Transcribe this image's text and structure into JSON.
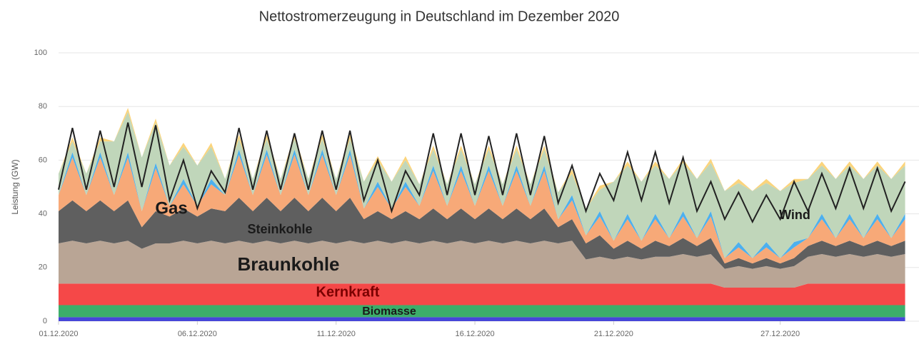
{
  "chart_data": {
    "type": "area",
    "stacked": true,
    "title": "Nettostromerzeugung in Deutschland im Dezember 2020",
    "y_label": "Leistung (GW)",
    "xlim": [
      0,
      31
    ],
    "xticks": [
      {
        "value": 0,
        "label": "01.12.2020"
      },
      {
        "value": 5,
        "label": "06.12.2020"
      },
      {
        "value": 10,
        "label": "11.12.2020"
      },
      {
        "value": 15,
        "label": "16.12.2020"
      },
      {
        "value": 20,
        "label": "21.12.2020"
      },
      {
        "value": 26,
        "label": "27.12.2020"
      }
    ],
    "ylim": [
      0,
      100
    ],
    "yticks": [
      0,
      20,
      40,
      60,
      80,
      100
    ],
    "grid": true,
    "x": [
      0,
      0.5,
      1,
      1.5,
      2,
      2.5,
      3,
      3.5,
      4,
      4.5,
      5,
      5.5,
      6,
      6.5,
      7,
      7.5,
      8,
      8.5,
      9,
      9.5,
      10,
      10.5,
      11,
      11.5,
      12,
      12.5,
      13,
      13.5,
      14,
      14.5,
      15,
      15.5,
      16,
      16.5,
      17,
      17.5,
      18,
      18.5,
      19,
      19.5,
      20,
      20.5,
      21,
      21.5,
      22,
      22.5,
      23,
      23.5,
      24,
      24.5,
      25,
      25.5,
      26,
      26.5,
      27,
      27.5,
      28,
      28.5,
      29,
      29.5,
      30,
      30.5
    ],
    "series": [
      {
        "color": "#4646d8",
        "values": [
          1.5,
          1.5,
          1.5,
          1.5,
          1.5,
          1.5,
          1.5,
          1.5,
          1.5,
          1.5,
          1.5,
          1.5,
          1.5,
          1.5,
          1.5,
          1.5,
          1.5,
          1.5,
          1.5,
          1.5,
          1.5,
          1.5,
          1.5,
          1.5,
          1.5,
          1.5,
          1.5,
          1.5,
          1.5,
          1.5,
          1.5,
          1.5,
          1.5,
          1.5,
          1.5,
          1.5,
          1.5,
          1.5,
          1.5,
          1.5,
          1.5,
          1.5,
          1.5,
          1.5,
          1.5,
          1.5,
          1.5,
          1.5,
          1.5,
          1.5,
          1.5,
          1.5,
          1.5,
          1.5,
          1.5,
          1.5,
          1.5,
          1.5,
          1.5,
          1.5,
          1.5,
          1.5
        ]
      },
      {
        "name": "Biomasse",
        "color": "#3cae6a",
        "values": [
          4.5,
          4.5,
          4.5,
          4.5,
          4.5,
          4.5,
          4.5,
          4.5,
          4.5,
          4.5,
          4.5,
          4.5,
          4.5,
          4.5,
          4.5,
          4.5,
          4.5,
          4.5,
          4.5,
          4.5,
          4.5,
          4.5,
          4.5,
          4.5,
          4.5,
          4.5,
          4.5,
          4.5,
          4.5,
          4.5,
          4.5,
          4.5,
          4.5,
          4.5,
          4.5,
          4.5,
          4.5,
          4.5,
          4.5,
          4.5,
          4.5,
          4.5,
          4.5,
          4.5,
          4.5,
          4.5,
          4.5,
          4.5,
          4.5,
          4.5,
          4.5,
          4.5,
          4.5,
          4.5,
          4.5,
          4.5,
          4.5,
          4.5,
          4.5,
          4.5,
          4.5,
          4.5
        ]
      },
      {
        "name": "Kernkraft",
        "color": "#f54848",
        "values": [
          8,
          8,
          8,
          8,
          8,
          8,
          8,
          8,
          8,
          8,
          8,
          8,
          8,
          8,
          8,
          8,
          8,
          8,
          8,
          8,
          8,
          8,
          8,
          8,
          8,
          8,
          8,
          8,
          8,
          8,
          8,
          8,
          8,
          8,
          8,
          8,
          8,
          8,
          8,
          8,
          8,
          8,
          8,
          8,
          8,
          8,
          8,
          8,
          6.5,
          6.5,
          6.5,
          6.5,
          6.5,
          6.5,
          8,
          8,
          8,
          8,
          8,
          8,
          8,
          8
        ]
      },
      {
        "name": "Braunkohle",
        "color": "#b9a595",
        "values": [
          15,
          16,
          15,
          16,
          15,
          16,
          13,
          15,
          15,
          16,
          15,
          16,
          15,
          16,
          15,
          16,
          15,
          16,
          15,
          16,
          15,
          16,
          15,
          16,
          15,
          16,
          15,
          16,
          15,
          16,
          15,
          16,
          15,
          16,
          15,
          16,
          15,
          16,
          9,
          10,
          9,
          10,
          9,
          10,
          10,
          11,
          10,
          11,
          7,
          8,
          7,
          8,
          7,
          8,
          10,
          11,
          10,
          11,
          10,
          11,
          10,
          11
        ]
      },
      {
        "name": "Steinkohle",
        "color": "#5f5f5f",
        "values": [
          12,
          15,
          12,
          15,
          12,
          15,
          8,
          12,
          10,
          12,
          10,
          12,
          12,
          16,
          12,
          16,
          12,
          16,
          12,
          16,
          12,
          16,
          9,
          11,
          9,
          11,
          9,
          12,
          9,
          12,
          9,
          12,
          9,
          12,
          9,
          12,
          6,
          8,
          6,
          8,
          4,
          6,
          4,
          6,
          4,
          6,
          4,
          6,
          2,
          3,
          2,
          3,
          2,
          3,
          4,
          5,
          4,
          5,
          4,
          5,
          4,
          5
        ]
      },
      {
        "name": "Gas",
        "color": "#f7a978",
        "values": [
          6,
          16,
          6,
          16,
          6,
          16,
          6,
          16,
          4,
          9,
          4,
          9,
          6,
          16,
          6,
          16,
          6,
          16,
          6,
          16,
          6,
          16,
          4,
          9,
          4,
          9,
          5,
          14,
          5,
          14,
          5,
          14,
          5,
          14,
          5,
          14,
          3,
          7,
          3,
          7,
          3,
          8,
          3,
          8,
          3,
          8,
          3,
          8,
          2,
          4,
          2,
          4,
          2,
          4,
          3,
          8,
          3,
          8,
          3,
          8,
          3,
          8
        ]
      },
      {
        "color": "#4cb0ee",
        "values": [
          0,
          2,
          0,
          2,
          0,
          2,
          0,
          2,
          0,
          2,
          0,
          2,
          0,
          2,
          0,
          2,
          0,
          2,
          0,
          2,
          0,
          2,
          0,
          2,
          0,
          2,
          0,
          2,
          0,
          2,
          0,
          2,
          0,
          2,
          0,
          2,
          0,
          2,
          0,
          2,
          0,
          2,
          0,
          2,
          0,
          2,
          0,
          2,
          0,
          2,
          0,
          2,
          0,
          2,
          0,
          2,
          0,
          2,
          0,
          2,
          0,
          2
        ]
      },
      {
        "name": "Wind",
        "color": "#c0d6ba",
        "values": [
          8,
          4,
          8,
          4,
          20,
          15,
          20,
          15,
          15,
          12,
          15,
          12,
          6,
          4,
          6,
          4,
          6,
          4,
          6,
          4,
          6,
          4,
          10,
          8,
          10,
          8,
          8,
          6,
          8,
          6,
          8,
          6,
          8,
          6,
          8,
          6,
          10,
          8,
          10,
          8,
          22,
          18,
          22,
          18,
          22,
          18,
          22,
          18,
          25,
          22,
          25,
          22,
          25,
          22,
          22,
          18,
          22,
          18,
          22,
          18,
          22,
          18
        ]
      },
      {
        "color": "#fbd47c",
        "values": [
          0,
          1.5,
          0,
          1.5,
          0,
          1.5,
          0,
          1.5,
          0,
          1.5,
          0,
          1.5,
          0,
          1.5,
          0,
          1.5,
          0,
          1.5,
          0,
          1.5,
          0,
          1.5,
          0,
          1.5,
          0,
          1.5,
          0,
          1.5,
          0,
          1.5,
          0,
          1.5,
          0,
          1.5,
          0,
          1.5,
          0,
          1.5,
          0,
          1.5,
          0,
          1.5,
          0,
          1.5,
          0,
          1.5,
          0,
          1.5,
          0,
          1.5,
          0,
          1.5,
          0,
          1.5,
          0,
          1.5,
          0,
          1.5,
          0,
          1.5,
          0,
          1.5
        ]
      }
    ],
    "line": {
      "color": "#222222",
      "values": [
        49,
        72,
        49,
        71,
        50,
        74,
        50,
        73,
        45,
        60,
        42,
        56,
        48,
        72,
        49,
        71,
        49,
        70,
        49,
        71,
        49,
        71,
        45,
        60,
        41,
        56,
        47,
        70,
        47,
        70,
        47,
        69,
        47,
        70,
        47,
        69,
        44,
        58,
        41,
        55,
        45,
        63,
        45,
        63,
        44,
        61,
        41,
        52,
        38,
        48,
        37,
        47,
        38,
        52,
        41,
        55,
        42,
        57,
        42,
        57,
        41,
        52
      ]
    }
  }
}
